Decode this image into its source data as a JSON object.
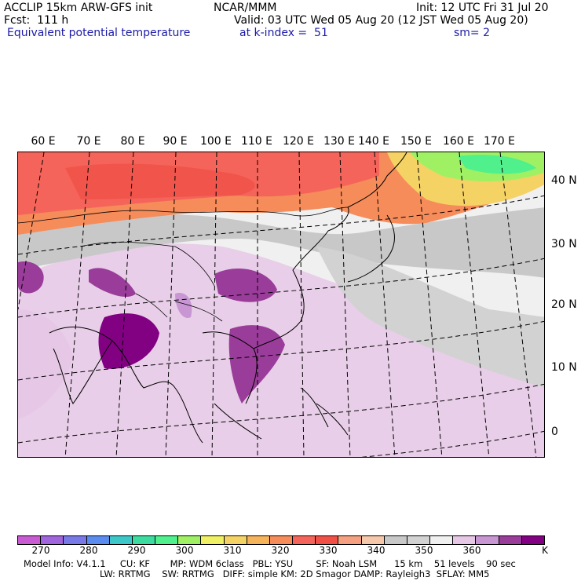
{
  "header": {
    "line1_left": "ACCLIP 15km ARW-GFS init",
    "line1_center": "NCAR/MMM",
    "line1_right": "Init: 12 UTC Fri 31 Jul 20",
    "line2_left": "Fcst:  111 h",
    "line2_right": "Valid: 03 UTC Wed 05 Aug 20 (12 JST Wed 05 Aug 20)",
    "line3_left": "Equivalent potential temperature",
    "line3_center": "at k-index =  51",
    "line3_right": "sm= 2"
  },
  "map": {
    "lon_labels": [
      "60 E",
      "70 E",
      "80 E",
      "90 E",
      "100 E",
      "110 E",
      "120 E",
      "130 E",
      "140 E",
      "150 E",
      "160 E",
      "170 E"
    ],
    "lat_labels": [
      "40 N",
      "30 N",
      "20 N",
      "10 N",
      "0"
    ]
  },
  "colorbar": {
    "colors": [
      "#c85ad2",
      "#a064dc",
      "#7878e6",
      "#5a8cf0",
      "#3cc8c8",
      "#3cdca0",
      "#50f08c",
      "#a0f064",
      "#f0f064",
      "#f5d264",
      "#f5b45a",
      "#f58c5a",
      "#f5645a",
      "#f05046",
      "#f5a080",
      "#f5c8aa",
      "#c8c8c8",
      "#d2d2d2",
      "#f0f0f0",
      "#e6c8e6",
      "#c896d2",
      "#9a3c9a",
      "#820082"
    ],
    "tick_labels": [
      "270",
      "280",
      "290",
      "300",
      "310",
      "320",
      "330",
      "340",
      "350",
      "360",
      "K"
    ]
  },
  "model_info": {
    "line1": "Model Info: V4.1.1     CU: KF       MP: WDM 6class   PBL: YSU        SF: Noah LSM      15 km    51 levels    90 sec",
    "line2": "LW: RRTMG    SW: RRTMG   DIFF: simple KM: 2D Smagor DAMP: Rayleigh3  SFLAY: MM5"
  }
}
